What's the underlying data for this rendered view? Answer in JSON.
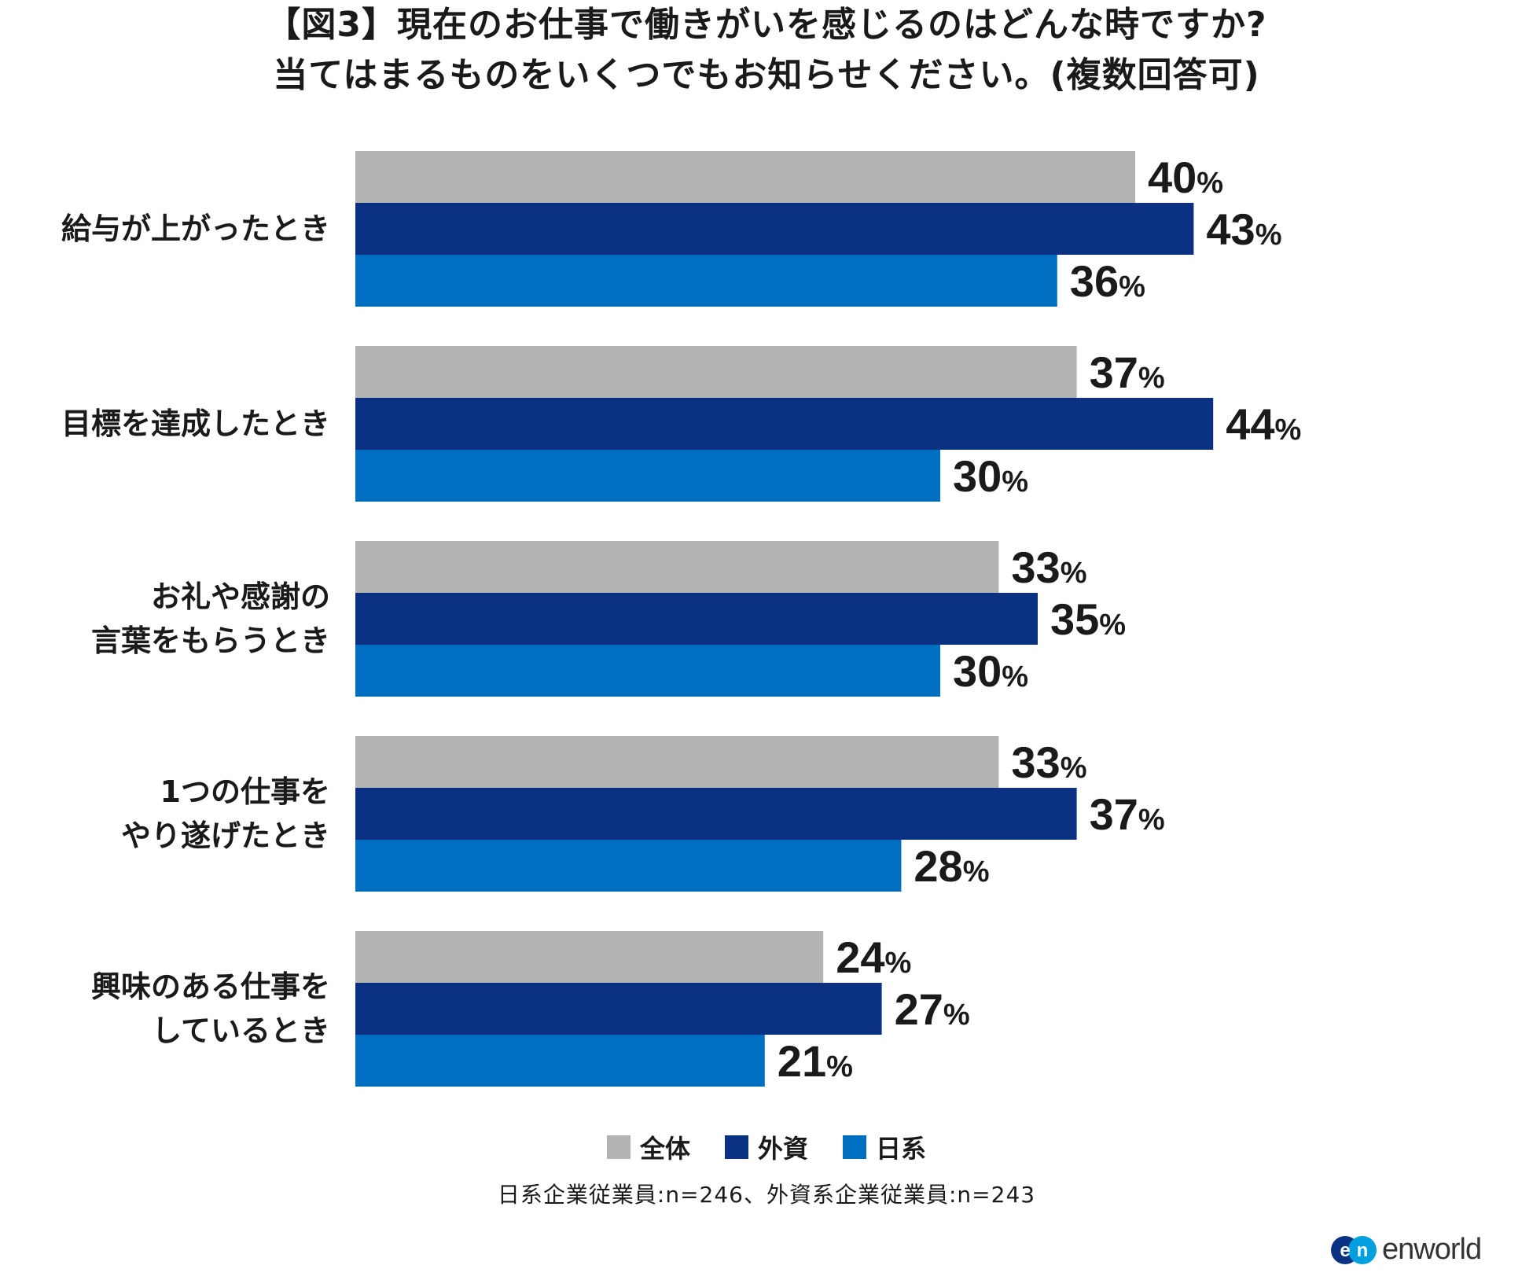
{
  "title": {
    "line1": "【図3】現在のお仕事で働きがいを感じるのはどんな時ですか?",
    "line2": "当てはまるものをいくつでもお知らせください。(複数回答可)"
  },
  "colors": {
    "zentai": "#b3b3b3",
    "gaishi": "#0b3282",
    "nikkei": "#006fc2",
    "text": "#1a1a1a"
  },
  "chart_data": {
    "type": "bar",
    "orientation": "horizontal",
    "title": "【図3】現在のお仕事で働きがいを感じるのはどんな時ですか? 当てはまるものをいくつでもお知らせください。(複数回答可)",
    "categories": [
      [
        "給与が上がったとき"
      ],
      [
        "目標を達成したとき"
      ],
      [
        "お礼や感謝の",
        "言葉をもらうとき"
      ],
      [
        "1つの仕事を",
        "やり遂げたとき"
      ],
      [
        "興味のある仕事を",
        "しているとき"
      ]
    ],
    "series": [
      {
        "name": "全体",
        "color": "#b3b3b3",
        "values": [
          40,
          37,
          33,
          33,
          24
        ]
      },
      {
        "name": "外資",
        "color": "#0b3282",
        "values": [
          43,
          44,
          35,
          37,
          27
        ]
      },
      {
        "name": "日系",
        "color": "#006fc2",
        "values": [
          36,
          30,
          30,
          28,
          21
        ]
      }
    ],
    "unit": "%",
    "xlim": [
      0,
      100
    ],
    "legend": "bottom-center",
    "grid": false
  },
  "legend": {
    "items": [
      {
        "label": "全体",
        "color": "#b3b3b3"
      },
      {
        "label": "外資",
        "color": "#0b3282"
      },
      {
        "label": "日系",
        "color": "#006fc2"
      }
    ]
  },
  "footnote": "日系企業従業員:n=246、外資系企業従業員:n=243",
  "logo": {
    "text": "enworld",
    "mark": "en"
  }
}
